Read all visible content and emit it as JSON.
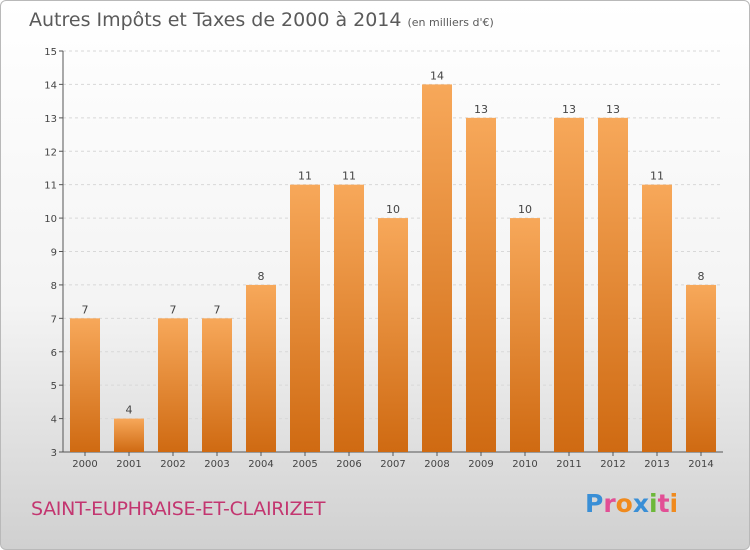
{
  "header": {
    "title": "Autres Impôts et Taxes de 2000 à 2014",
    "subtitle": "(en milliers d'€)"
  },
  "footer": {
    "commune": "SAINT-EUPHRAISE-ET-CLAIRIZET"
  },
  "logo": {
    "text": "Proxiti",
    "letters": [
      {
        "ch": "P",
        "color": "#3a8fd6"
      },
      {
        "ch": "r",
        "color": "#e24f95"
      },
      {
        "ch": "o",
        "color": "#f08a1d"
      },
      {
        "ch": "x",
        "color": "#3a8fd6"
      },
      {
        "ch": "i",
        "color": "#6db83a"
      },
      {
        "ch": "t",
        "color": "#e24f95"
      },
      {
        "ch": "i",
        "color": "#f08a1d"
      }
    ]
  },
  "colors": {
    "bar_top": "#f7a85a",
    "bar_bottom": "#cf6a12",
    "axis": "#555555",
    "grid": "#d8d8d8",
    "commune_text": "#c33670"
  },
  "chart_data": {
    "type": "bar",
    "categories": [
      "2000",
      "2001",
      "2002",
      "2003",
      "2004",
      "2005",
      "2006",
      "2007",
      "2008",
      "2009",
      "2010",
      "2011",
      "2012",
      "2013",
      "2014"
    ],
    "values": [
      7,
      4,
      7,
      7,
      8,
      11,
      11,
      10,
      14,
      13,
      10,
      13,
      13,
      11,
      8
    ],
    "ylim": [
      3,
      15
    ],
    "yticks": [
      3,
      4,
      5,
      6,
      7,
      8,
      9,
      10,
      11,
      12,
      13,
      14,
      15
    ],
    "grid": true,
    "data_labels": true
  }
}
